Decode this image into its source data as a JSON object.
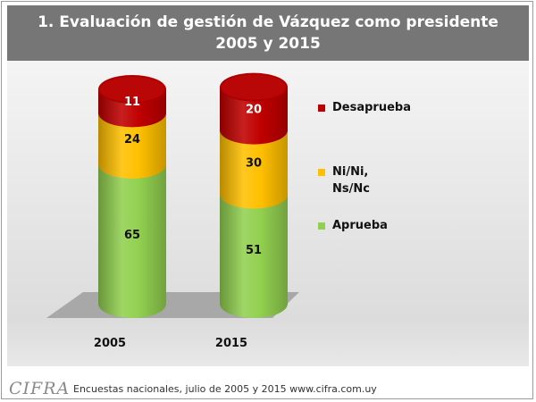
{
  "title": {
    "line1": "1.    Evaluación de gestión de Vázquez como presidente",
    "line2": "2005 y 2015"
  },
  "footer": {
    "logo": "CIFRA",
    "source": "Encuestas nacionales, julio de 2005 y 2015    www.cifra.com.uy"
  },
  "colors": {
    "Aprueba": "#92d050",
    "Ni/Ni, Ns/Nc": "#ffc000",
    "Desaprueba": "#c00000"
  },
  "chart_data": {
    "type": "bar",
    "stacked": true,
    "style": "3d-cylinder",
    "title": "1. Evaluación de gestión de Vázquez como presidente 2005 y 2015",
    "categories": [
      "2005",
      "2015"
    ],
    "series": [
      {
        "name": "Aprueba",
        "label_lines": [
          "Aprueba"
        ],
        "values": [
          65,
          51
        ]
      },
      {
        "name": "Ni/Ni, Ns/Nc",
        "label_lines": [
          "Ni/Ni,",
          "Ns/Nc"
        ],
        "values": [
          24,
          30
        ]
      },
      {
        "name": "Desaprueba",
        "label_lines": [
          "Desaprueba"
        ],
        "values": [
          11,
          20
        ]
      }
    ],
    "legend_order": [
      "Desaprueba",
      "Ni/Ni, Ns/Nc",
      "Aprueba"
    ],
    "ylim": [
      0,
      100
    ],
    "xlabel": "",
    "ylabel": "",
    "legend_position": "right"
  }
}
